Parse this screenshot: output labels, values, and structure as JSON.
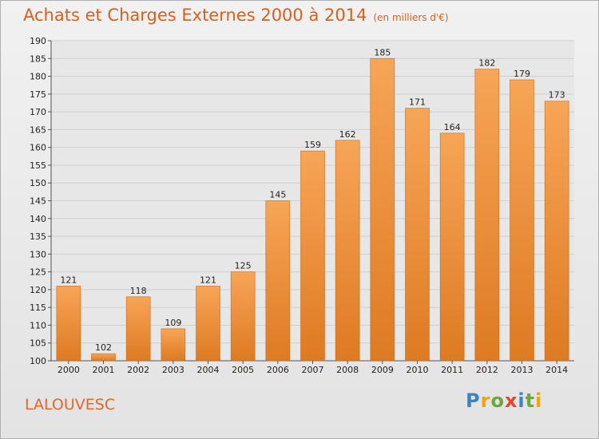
{
  "header": {
    "title": "Achats et Charges Externes 2000 à 2014",
    "subtitle": "(en milliers d'€)"
  },
  "footer": {
    "location": "LALOUVESC",
    "logo_text": "Proxiti"
  },
  "colors": {
    "bar_top": "#f7a557",
    "bar_bottom": "#de7a22",
    "title": "#d95f1a"
  },
  "chart_data": {
    "type": "bar",
    "categories": [
      "2000",
      "2001",
      "2002",
      "2003",
      "2004",
      "2005",
      "2006",
      "2007",
      "2008",
      "2009",
      "2010",
      "2011",
      "2012",
      "2013",
      "2014"
    ],
    "values": [
      121,
      102,
      118,
      109,
      121,
      125,
      145,
      159,
      162,
      185,
      171,
      164,
      182,
      179,
      173
    ],
    "ylim": [
      100,
      190
    ],
    "yticks": [
      100,
      105,
      110,
      115,
      120,
      125,
      130,
      135,
      140,
      145,
      150,
      155,
      160,
      165,
      170,
      175,
      180,
      185,
      190
    ],
    "grid": true,
    "legend": "none"
  }
}
